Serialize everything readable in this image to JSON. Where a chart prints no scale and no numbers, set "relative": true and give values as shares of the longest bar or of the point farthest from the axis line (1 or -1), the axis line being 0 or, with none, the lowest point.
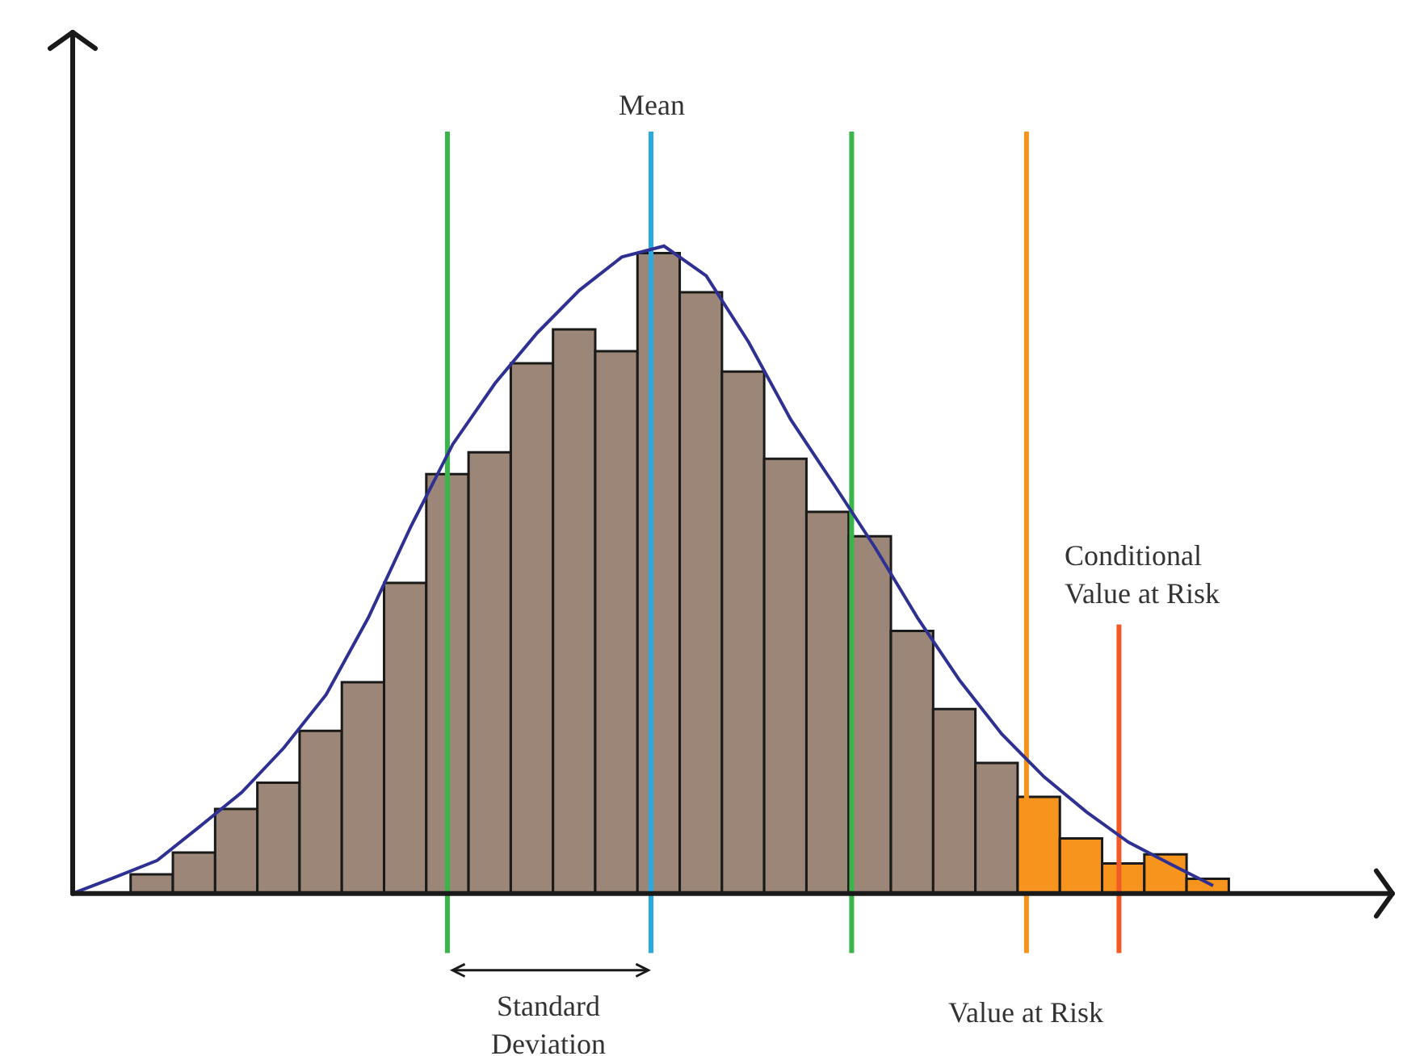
{
  "chart_data": [
    {
      "type": "bar",
      "relative": true,
      "categories": [
        null,
        null,
        null,
        null,
        null,
        null,
        null,
        null,
        null,
        null,
        null,
        null,
        null,
        null,
        null,
        null,
        null,
        null,
        null,
        null,
        null,
        null,
        null,
        null,
        null,
        null
      ],
      "values": [
        0.03,
        0.064,
        0.132,
        0.173,
        0.254,
        0.33,
        0.485,
        0.655,
        0.689,
        0.828,
        0.881,
        0.847,
        1,
        0.939,
        0.815,
        0.679,
        0.596,
        0.558,
        0.41,
        0.288,
        0.204,
        0.151,
        0.086,
        0.047,
        0.061,
        0.023
      ],
      "colors": [
        "#9c8677",
        "#9c8677",
        "#9c8677",
        "#9c8677",
        "#9c8677",
        "#9c8677",
        "#9c8677",
        "#9c8677",
        "#9c8677",
        "#9c8677",
        "#9c8677",
        "#9c8677",
        "#9c8677",
        "#9c8677",
        "#9c8677",
        "#9c8677",
        "#9c8677",
        "#9c8677",
        "#9c8677",
        "#9c8677",
        "#9c8677",
        "#f7941d",
        "#f7941d",
        "#f7941d",
        "#f7941d",
        "#f7941d"
      ],
      "annotations": [
        "Mean",
        "Value at Risk",
        "Conditional\nValue at Risk",
        "Standard\nDeviation"
      ],
      "grid": false
    },
    {
      "type": "line",
      "relative": true,
      "color": "#2e3192",
      "categories": [
        null,
        null,
        null,
        null,
        null,
        null,
        null,
        null,
        null,
        null,
        null,
        null,
        null,
        null,
        null,
        null,
        null,
        null,
        null,
        null,
        null,
        null,
        null,
        null,
        null,
        null,
        null,
        null
      ],
      "values": [
        0,
        0.025,
        0.051,
        0.103,
        0.156,
        0.225,
        0.307,
        0.426,
        0.566,
        0.694,
        0.788,
        0.866,
        0.932,
        0.983,
        1,
        0.954,
        0.852,
        0.732,
        0.634,
        0.534,
        0.426,
        0.329,
        0.246,
        0.18,
        0.126,
        0.079,
        0.045,
        0.012
      ],
      "grid": false
    }
  ]
}
